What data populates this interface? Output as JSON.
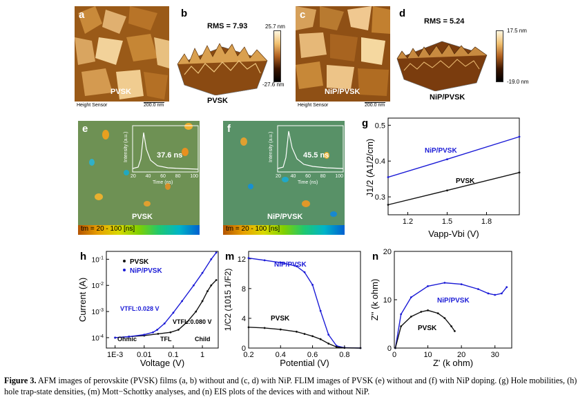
{
  "panels": {
    "a": {
      "letter": "a",
      "sample": "PVSK",
      "footer_left": "Height Sensor",
      "scale_bar": "200.0 nm"
    },
    "b": {
      "letter": "b",
      "rms": "RMS = 7.93",
      "max": "25.7 nm",
      "min": "-27.6 nm",
      "sample": "PVSK"
    },
    "c": {
      "letter": "c",
      "sample": "NiP/PVSK",
      "footer_left": "Height Sensor",
      "scale_bar": "200.0 nm"
    },
    "d": {
      "letter": "d",
      "rms": "RMS = 5.24",
      "max": "17.5 nm",
      "min": "-19.0 nm",
      "sample": "NiP/PVSK"
    },
    "e": {
      "letter": "e",
      "sample": "PVSK",
      "lifetime": "37.6 ns",
      "inset_ylabel": "Intensity (a.u.)",
      "inset_xlabel": "Time (ns)",
      "inset_xticks": [
        "20",
        "40",
        "60",
        "80",
        "100"
      ],
      "colorbar": "tm = 20 - 100 [ns]"
    },
    "f": {
      "letter": "f",
      "sample": "NiP/PVSK",
      "lifetime": "45.5 ns",
      "inset_ylabel": "Intensity (a.u.)",
      "inset_xlabel": "Time (ns)",
      "inset_xticks": [
        "20",
        "40",
        "60",
        "80",
        "100"
      ],
      "colorbar": "tm = 20 - 100 [ns]"
    },
    "g": {
      "letter": "g"
    },
    "h": {
      "letter": "h"
    },
    "m": {
      "letter": "m"
    },
    "n": {
      "letter": "n"
    }
  },
  "chart_data": [
    {
      "id": "g",
      "type": "line",
      "xlabel": "Vapp-Vbi (V)",
      "ylabel": "J1/2 (A1/2/cm)",
      "xlim": [
        1.05,
        2.05
      ],
      "ylim": [
        0.25,
        0.52
      ],
      "xticks": [
        "1.2",
        "1.5",
        "1.8"
      ],
      "yticks": [
        "0.3",
        "0.4",
        "0.5"
      ],
      "series": [
        {
          "name": "NiP/PVSK",
          "color": "#1a1ad6",
          "x": [
            1.05,
            1.5,
            2.05
          ],
          "y": [
            0.355,
            0.405,
            0.468
          ]
        },
        {
          "name": "PVSK",
          "color": "#111111",
          "x": [
            1.05,
            1.5,
            2.05
          ],
          "y": [
            0.278,
            0.318,
            0.368
          ]
        }
      ]
    },
    {
      "id": "h",
      "type": "line",
      "log_x": true,
      "log_y": true,
      "xlabel": "Voltage (V)",
      "ylabel": "Current (A)",
      "xticks": [
        "1E-3",
        "0.01",
        "0.1",
        "1"
      ],
      "yticks": [
        "10-4",
        "10-3",
        "10-2",
        "10-1"
      ],
      "xlim": [
        0.0005,
        3.5
      ],
      "ylim": [
        4e-05,
        0.2
      ],
      "series": [
        {
          "name": "PVSK",
          "color": "#111111",
          "x": [
            0.001,
            0.003,
            0.01,
            0.03,
            0.08,
            0.15,
            0.3,
            0.6,
            1,
            1.5,
            2,
            3
          ],
          "y": [
            0.0001,
            0.00011,
            0.00012,
            0.00014,
            0.00016,
            0.0002,
            0.0004,
            0.001,
            0.0025,
            0.006,
            0.01,
            0.016
          ]
        },
        {
          "name": "NiP/PVSK",
          "color": "#1a1ad6",
          "x": [
            0.001,
            0.003,
            0.01,
            0.02,
            0.028,
            0.05,
            0.1,
            0.2,
            0.5,
            1,
            2,
            3
          ],
          "y": [
            0.0001,
            0.00011,
            0.00013,
            0.00016,
            0.0002,
            0.00035,
            0.0009,
            0.0025,
            0.01,
            0.03,
            0.1,
            0.18
          ]
        }
      ],
      "annotations": [
        "VTFL:0.028 V",
        "VTFL:0.080 V",
        "Ohmic",
        "TFL",
        "Child"
      ]
    },
    {
      "id": "m",
      "type": "line",
      "xlabel": "Potential (V)",
      "ylabel": "1/C2 (1015 1/F2)",
      "xlim": [
        0.2,
        0.9
      ],
      "ylim": [
        0,
        13
      ],
      "xticks": [
        "0.2",
        "0.4",
        "0.6",
        "0.8"
      ],
      "yticks": [
        "0",
        "4",
        "8",
        "12"
      ],
      "series": [
        {
          "name": "NiP/PVSK",
          "color": "#1a1ad6",
          "x": [
            0.2,
            0.3,
            0.4,
            0.5,
            0.55,
            0.6,
            0.65,
            0.7,
            0.75,
            0.8,
            0.9
          ],
          "y": [
            12.1,
            11.8,
            11.5,
            11.0,
            10.2,
            8.5,
            5.0,
            1.8,
            0.3,
            0.05,
            0
          ]
        },
        {
          "name": "PVSK",
          "color": "#111111",
          "x": [
            0.2,
            0.3,
            0.4,
            0.5,
            0.55,
            0.6,
            0.65,
            0.7,
            0.75,
            0.8,
            0.9
          ],
          "y": [
            2.8,
            2.7,
            2.5,
            2.2,
            1.9,
            1.6,
            1.2,
            0.6,
            0.15,
            0.02,
            0
          ]
        }
      ]
    },
    {
      "id": "n",
      "type": "line",
      "xlabel": "Z' (k ohm)",
      "ylabel": "Z'' (k ohm)",
      "xlim": [
        0,
        35
      ],
      "ylim": [
        0,
        20
      ],
      "xticks": [
        "0",
        "10",
        "20",
        "30"
      ],
      "yticks": [
        "0",
        "10",
        "20"
      ],
      "series": [
        {
          "name": "NiP/PVSK",
          "color": "#1a1ad6",
          "x": [
            0.3,
            2,
            5,
            10,
            15,
            20,
            25,
            28,
            30,
            32,
            33.5
          ],
          "y": [
            0,
            7,
            10.5,
            12.8,
            13.5,
            13.2,
            12.2,
            11.3,
            11.0,
            11.3,
            12.6
          ]
        },
        {
          "name": "PVSK",
          "color": "#111111",
          "x": [
            0.3,
            2,
            5,
            8,
            10,
            13,
            15,
            17,
            18
          ],
          "y": [
            0,
            4.5,
            6.5,
            7.5,
            7.8,
            7.2,
            6.2,
            4.5,
            3.5
          ]
        }
      ]
    }
  ],
  "caption": {
    "label": "Figure 3.",
    "text": "AFM images of perovskite (PVSK) films (a, b) without and (c, d) with NiP. FLIM images of PVSK (e) without and (f) with NiP doping. (g) Hole mobilities, (h) hole trap-state densities, (m) Mott−Schottky analyses, and (n) EIS plots of the devices with and without NiP."
  }
}
